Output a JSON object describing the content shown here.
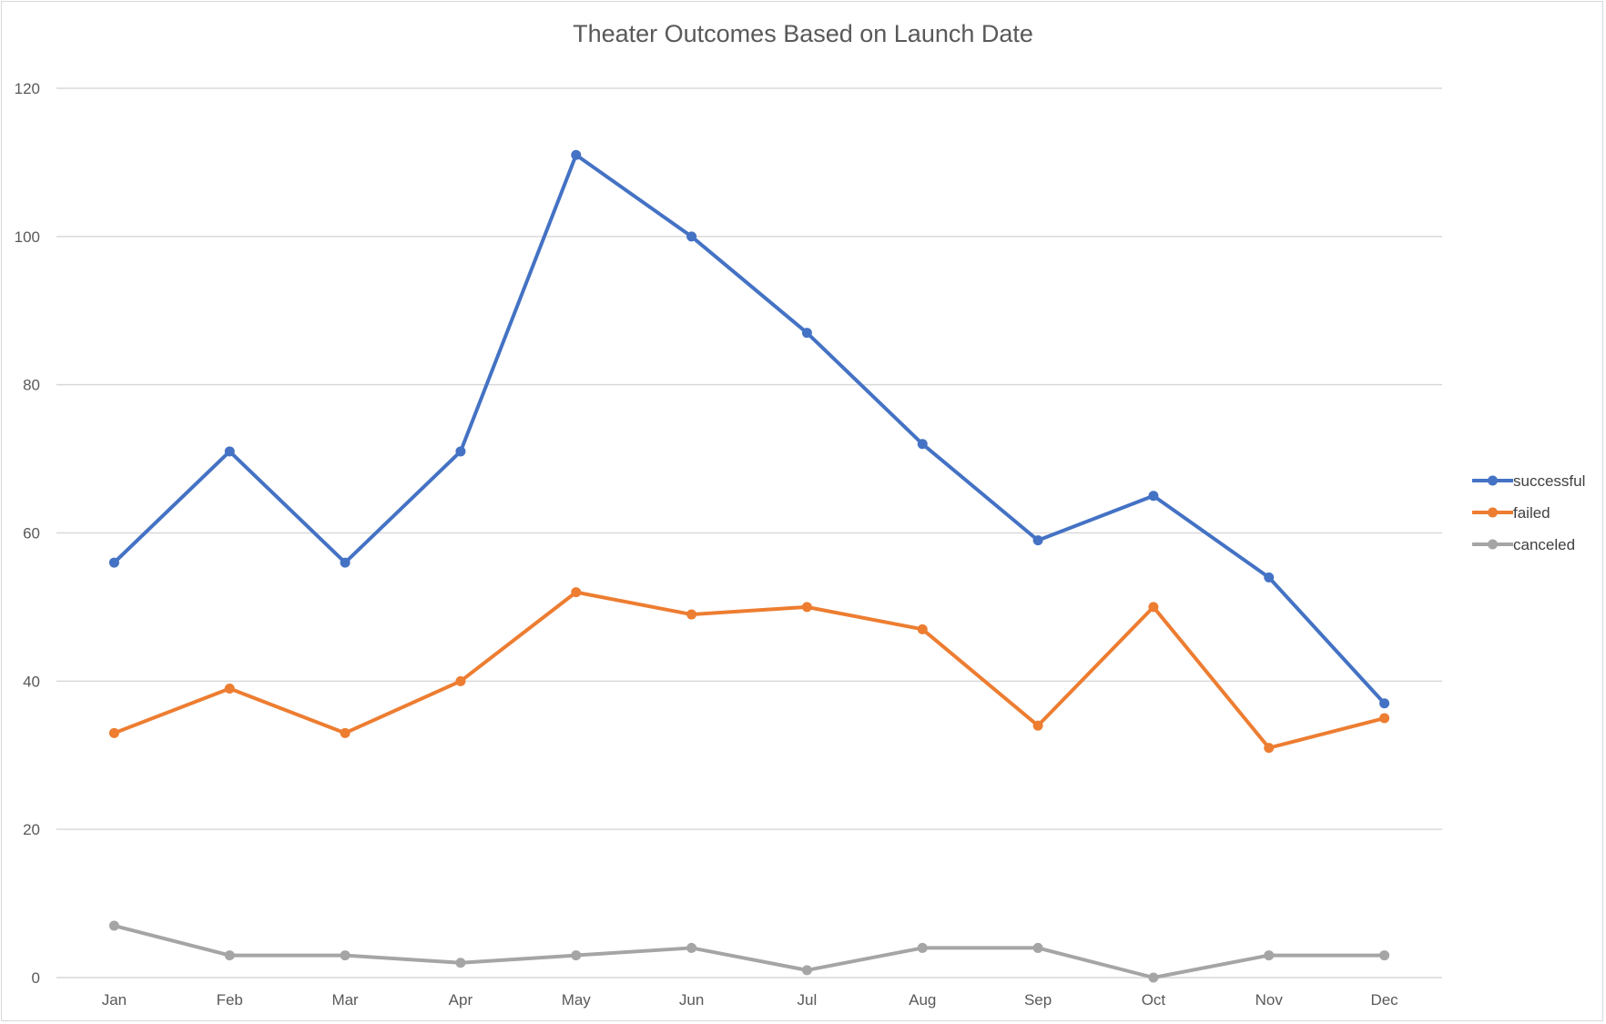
{
  "chart_data": {
    "type": "line",
    "title": "Theater Outcomes Based on Launch Date",
    "xlabel": "",
    "ylabel": "",
    "categories": [
      "Jan",
      "Feb",
      "Mar",
      "Apr",
      "May",
      "Jun",
      "Jul",
      "Aug",
      "Sep",
      "Oct",
      "Nov",
      "Dec"
    ],
    "ylim": [
      0,
      120
    ],
    "yticks": [
      "0",
      "20",
      "40",
      "60",
      "80",
      "100",
      "120"
    ],
    "grid": true,
    "legend_position": "right",
    "series": [
      {
        "name": "successful",
        "color": "#4472c4",
        "values": [
          56,
          71,
          56,
          71,
          111,
          100,
          87,
          72,
          59,
          65,
          54,
          37
        ]
      },
      {
        "name": "failed",
        "color": "#ed7d31",
        "values": [
          33,
          39,
          33,
          40,
          52,
          49,
          50,
          47,
          34,
          50,
          31,
          35
        ]
      },
      {
        "name": "canceled",
        "color": "#a5a5a5",
        "values": [
          7,
          3,
          3,
          2,
          3,
          4,
          1,
          4,
          4,
          0,
          3,
          3
        ]
      }
    ]
  }
}
